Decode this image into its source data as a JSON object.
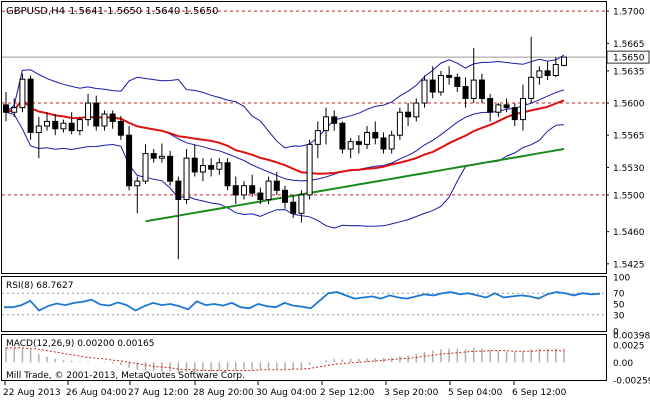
{
  "chart_data": [
    {
      "type": "candlestick",
      "symbol_label": "GBPUSD,H4",
      "ohlc_label": "1.5641 1.5650 1.5640 1.5650",
      "price_ticks": [
        "1.5700",
        "1.5665",
        "1.5650",
        "1.5635",
        "1.5600",
        "1.5565",
        "1.5530",
        "1.5500",
        "1.5460",
        "1.5425"
      ],
      "ylim": [
        1.5415,
        1.571
      ],
      "current_price": 1.565,
      "horizontal_levels": [
        1.57,
        1.56,
        1.55
      ],
      "x_labels": [
        "22 Aug 2013",
        "26 Aug 04:00",
        "27 Aug 12:00",
        "28 Aug 20:00",
        "30 Aug 04:00",
        "2 Sep 12:00",
        "3 Sep 20:00",
        "5 Sep 04:00",
        "6 Sep 12:00"
      ],
      "candles": [
        [
          1.5598,
          1.5612,
          1.558,
          1.559
        ],
        [
          1.559,
          1.5605,
          1.5585,
          1.5595
        ],
        [
          1.5595,
          1.5632,
          1.559,
          1.5626
        ],
        [
          1.5626,
          1.563,
          1.556,
          1.5568
        ],
        [
          1.5568,
          1.5585,
          1.554,
          1.5575
        ],
        [
          1.5575,
          1.559,
          1.557,
          1.558
        ],
        [
          1.558,
          1.5588,
          1.5565,
          1.5572
        ],
        [
          1.5572,
          1.5582,
          1.5568,
          1.5578
        ],
        [
          1.5578,
          1.559,
          1.5566,
          1.557
        ],
        [
          1.557,
          1.5585,
          1.5565,
          1.5582
        ],
        [
          1.5582,
          1.561,
          1.5575,
          1.56
        ],
        [
          1.56,
          1.5608,
          1.557,
          1.5575
        ],
        [
          1.5575,
          1.5592,
          1.557,
          1.5588
        ],
        [
          1.5588,
          1.5592,
          1.5572,
          1.558
        ],
        [
          1.558,
          1.5586,
          1.556,
          1.5565
        ],
        [
          1.5565,
          1.5575,
          1.5505,
          1.551
        ],
        [
          1.551,
          1.552,
          1.548,
          1.5515
        ],
        [
          1.5515,
          1.5555,
          1.5512,
          1.5545
        ],
        [
          1.5545,
          1.555,
          1.5535,
          1.554
        ],
        [
          1.554,
          1.5556,
          1.5535,
          1.5542
        ],
        [
          1.5542,
          1.5548,
          1.551,
          1.5515
        ],
        [
          1.5515,
          1.552,
          1.543,
          1.5495
        ],
        [
          1.5495,
          1.555,
          1.549,
          1.554
        ],
        [
          1.554,
          1.5555,
          1.552,
          1.5525
        ],
        [
          1.5525,
          1.554,
          1.5515,
          1.5532
        ],
        [
          1.5532,
          1.554,
          1.552,
          1.5528
        ],
        [
          1.5528,
          1.554,
          1.5522,
          1.5535
        ],
        [
          1.5535,
          1.554,
          1.5505,
          1.551
        ],
        [
          1.551,
          1.552,
          1.549,
          1.55
        ],
        [
          1.55,
          1.5515,
          1.5495,
          1.551
        ],
        [
          1.551,
          1.5522,
          1.5498,
          1.5502
        ],
        [
          1.5502,
          1.5508,
          1.549,
          1.5495
        ],
        [
          1.5495,
          1.552,
          1.549,
          1.5515
        ],
        [
          1.5515,
          1.5525,
          1.55,
          1.5505
        ],
        [
          1.5505,
          1.551,
          1.5485,
          1.5492
        ],
        [
          1.5492,
          1.55,
          1.5475,
          1.548
        ],
        [
          1.548,
          1.5505,
          1.547,
          1.55
        ],
        [
          1.55,
          1.556,
          1.5495,
          1.5555
        ],
        [
          1.5555,
          1.558,
          1.554,
          1.557
        ],
        [
          1.557,
          1.5595,
          1.5555,
          1.5585
        ],
        [
          1.5585,
          1.5592,
          1.557,
          1.5578
        ],
        [
          1.5578,
          1.558,
          1.5545,
          1.555
        ],
        [
          1.555,
          1.5562,
          1.554,
          1.5558
        ],
        [
          1.5558,
          1.5565,
          1.5545,
          1.5555
        ],
        [
          1.5555,
          1.5575,
          1.555,
          1.5568
        ],
        [
          1.5568,
          1.558,
          1.5555,
          1.5562
        ],
        [
          1.5562,
          1.5568,
          1.5545,
          1.555
        ],
        [
          1.555,
          1.557,
          1.5545,
          1.5565
        ],
        [
          1.5565,
          1.5595,
          1.556,
          1.559
        ],
        [
          1.559,
          1.56,
          1.5575,
          1.5585
        ],
        [
          1.5585,
          1.5605,
          1.558,
          1.56
        ],
        [
          1.56,
          1.563,
          1.5595,
          1.5625
        ],
        [
          1.5625,
          1.564,
          1.5605,
          1.5612
        ],
        [
          1.5612,
          1.5635,
          1.5608,
          1.563
        ],
        [
          1.563,
          1.564,
          1.562,
          1.5628
        ],
        [
          1.5628,
          1.5632,
          1.5612,
          1.5618
        ],
        [
          1.5618,
          1.5628,
          1.5595,
          1.5605
        ],
        [
          1.5605,
          1.566,
          1.56,
          1.5625
        ],
        [
          1.5625,
          1.5632,
          1.56,
          1.5605
        ],
        [
          1.5605,
          1.561,
          1.558,
          1.559
        ],
        [
          1.559,
          1.56,
          1.5585,
          1.5598
        ],
        [
          1.5598,
          1.5605,
          1.559,
          1.5595
        ],
        [
          1.5595,
          1.56,
          1.5575,
          1.5582
        ],
        [
          1.5582,
          1.562,
          1.557,
          1.5605
        ],
        [
          1.5605,
          1.5672,
          1.56,
          1.5628
        ],
        [
          1.5628,
          1.564,
          1.562,
          1.5635
        ],
        [
          1.5635,
          1.5645,
          1.5625,
          1.563
        ],
        [
          1.563,
          1.565,
          1.5628,
          1.5642
        ],
        [
          1.5641,
          1.565,
          1.564,
          1.565
        ]
      ]
    },
    {
      "type": "line",
      "label": "RSI(8) 68.7627",
      "ticks": [
        "100",
        "70",
        "50",
        "30",
        "0"
      ],
      "ylim": [
        0,
        100
      ],
      "levels": [
        70,
        30
      ],
      "values": [
        44,
        44,
        48,
        56,
        38,
        46,
        51,
        48,
        52,
        54,
        58,
        49,
        47,
        53,
        48,
        38,
        46,
        52,
        48,
        50,
        46,
        40,
        55,
        48,
        50,
        47,
        52,
        44,
        42,
        50,
        46,
        44,
        52,
        47,
        45,
        42,
        56,
        70,
        72,
        66,
        60,
        62,
        64,
        60,
        66,
        62,
        60,
        64,
        68,
        66,
        70,
        72,
        68,
        70,
        66,
        62,
        70,
        62,
        64,
        66,
        64,
        60,
        68,
        72,
        70,
        66,
        70,
        68,
        69
      ]
    },
    {
      "type": "histogram",
      "label": "MACD(12,26,9) 0.00200 0.00165",
      "ticks": [
        "0.00398",
        "0.0025",
        "0.00",
        "-0.00259"
      ],
      "ylim": [
        -0.00259,
        0.00398
      ],
      "histogram": [
        0.0022,
        0.0021,
        0.002,
        0.0018,
        0.0012,
        0.0008,
        0.0005,
        0.0003,
        0.0002,
        0.0001,
        0.0001,
        0.0,
        -0.0001,
        -0.0002,
        -0.0004,
        -0.0008,
        -0.0011,
        -0.0012,
        -0.0013,
        -0.0013,
        -0.0014,
        -0.0016,
        -0.0014,
        -0.0014,
        -0.0013,
        -0.0013,
        -0.0012,
        -0.0012,
        -0.0012,
        -0.0011,
        -0.0011,
        -0.0011,
        -0.001,
        -0.001,
        -0.001,
        -0.001,
        -0.0009,
        -0.0004,
        0.0,
        0.0003,
        0.0005,
        0.0004,
        0.0005,
        0.0005,
        0.0006,
        0.0006,
        0.0006,
        0.0007,
        0.0009,
        0.001,
        0.0012,
        0.0015,
        0.0017,
        0.0019,
        0.002,
        0.002,
        0.0019,
        0.0021,
        0.002,
        0.0018,
        0.0017,
        0.0016,
        0.0015,
        0.0016,
        0.0019,
        0.002,
        0.002,
        0.002,
        0.002
      ],
      "signal": [
        0.0021,
        0.0021,
        0.0021,
        0.002,
        0.0019,
        0.0017,
        0.0015,
        0.0013,
        0.0011,
        0.0009,
        0.0007,
        0.0006,
        0.0005,
        0.0003,
        0.0002,
        0.0,
        -0.0002,
        -0.0004,
        -0.0006,
        -0.0007,
        -0.0008,
        -0.001,
        -0.0011,
        -0.0011,
        -0.0012,
        -0.0012,
        -0.0012,
        -0.0012,
        -0.0012,
        -0.0012,
        -0.0012,
        -0.0011,
        -0.0011,
        -0.0011,
        -0.0011,
        -0.001,
        -0.001,
        -0.0009,
        -0.0007,
        -0.0005,
        -0.0003,
        -0.0002,
        -0.0001,
        0.0,
        0.0001,
        0.0002,
        0.0003,
        0.0004,
        0.0005,
        0.0006,
        0.0007,
        0.0009,
        0.001,
        0.0012,
        0.0013,
        0.0014,
        0.0015,
        0.0016,
        0.0016,
        0.0017,
        0.0017,
        0.0017,
        0.0016,
        0.0016,
        0.0016,
        0.0017,
        0.0017,
        0.0017,
        0.00165
      ]
    }
  ],
  "footer": {
    "copyright": "Mill Trade, © 2001-2013, MetaQuotes Software Corp."
  },
  "colors": {
    "candle": "#000000",
    "bollinger": "#1a1aa8",
    "ma_red": "#dd1111",
    "ma_green": "#1a8a1a",
    "rsi": "#1e78d2",
    "macd": "#b0b0b0",
    "signal": "#cc2222",
    "level": "#cc2222"
  }
}
